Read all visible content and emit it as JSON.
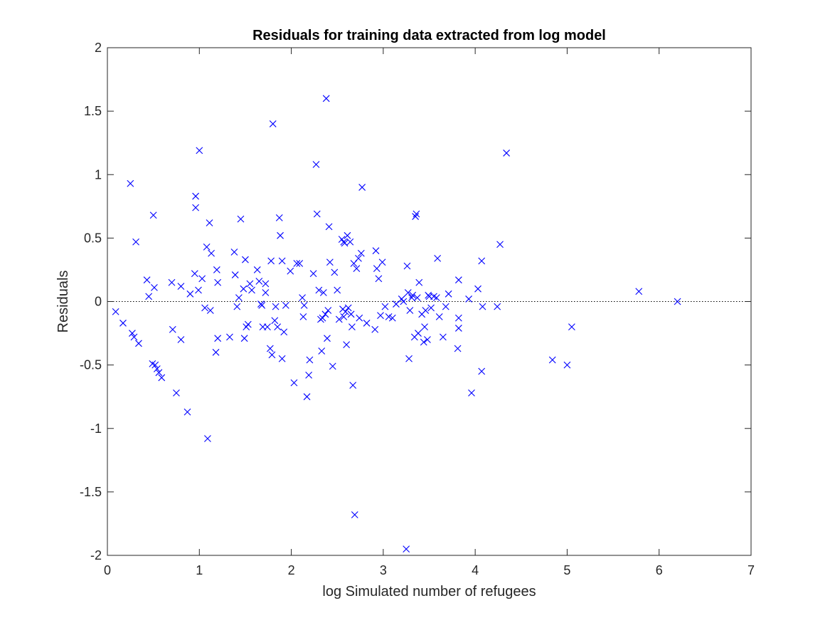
{
  "chart_data": {
    "type": "scatter",
    "title": "Residuals for training data extracted from log model",
    "xlabel": "log Simulated number of refugees",
    "ylabel": "Residuals",
    "xlim": [
      0,
      7
    ],
    "ylim": [
      -2,
      2
    ],
    "xticks": [
      "0",
      "1",
      "2",
      "3",
      "4",
      "5",
      "6",
      "7"
    ],
    "yticks": [
      "-2",
      "-1.5",
      "-1",
      "-0.5",
      "0",
      "0.5",
      "1",
      "1.5",
      "2"
    ],
    "reference_line": {
      "y": 0,
      "style": "dotted"
    },
    "marker": "x",
    "marker_color": "#0000ff",
    "grid": false,
    "points": [
      [
        0.09,
        -0.08
      ],
      [
        0.17,
        -0.17
      ],
      [
        0.25,
        0.93
      ],
      [
        0.27,
        -0.25
      ],
      [
        0.29,
        -0.28
      ],
      [
        0.31,
        0.47
      ],
      [
        0.34,
        -0.33
      ],
      [
        0.43,
        0.17
      ],
      [
        0.45,
        0.04
      ],
      [
        0.49,
        -0.49
      ],
      [
        0.5,
        0.68
      ],
      [
        0.51,
        0.11
      ],
      [
        0.52,
        -0.5
      ],
      [
        0.54,
        -0.53
      ],
      [
        0.56,
        -0.56
      ],
      [
        0.59,
        -0.6
      ],
      [
        0.7,
        0.15
      ],
      [
        0.71,
        -0.22
      ],
      [
        0.75,
        -0.72
      ],
      [
        0.8,
        -0.3
      ],
      [
        0.8,
        0.12
      ],
      [
        0.87,
        -0.87
      ],
      [
        0.9,
        0.06
      ],
      [
        0.95,
        0.22
      ],
      [
        0.96,
        0.74
      ],
      [
        0.96,
        0.83
      ],
      [
        0.99,
        0.09
      ],
      [
        1.0,
        1.19
      ],
      [
        1.03,
        0.18
      ],
      [
        1.06,
        -0.05
      ],
      [
        1.08,
        0.43
      ],
      [
        1.09,
        -1.08
      ],
      [
        1.11,
        0.62
      ],
      [
        1.12,
        -0.07
      ],
      [
        1.13,
        0.38
      ],
      [
        1.18,
        -0.4
      ],
      [
        1.19,
        0.25
      ],
      [
        1.2,
        -0.29
      ],
      [
        1.2,
        0.15
      ],
      [
        1.33,
        -0.28
      ],
      [
        1.38,
        0.39
      ],
      [
        1.39,
        0.21
      ],
      [
        1.41,
        -0.04
      ],
      [
        1.43,
        0.03
      ],
      [
        1.45,
        0.65
      ],
      [
        1.48,
        0.1
      ],
      [
        1.49,
        -0.29
      ],
      [
        1.5,
        0.33
      ],
      [
        1.51,
        -0.2
      ],
      [
        1.53,
        -0.18
      ],
      [
        1.55,
        0.14
      ],
      [
        1.57,
        0.09
      ],
      [
        1.63,
        0.25
      ],
      [
        1.65,
        0.16
      ],
      [
        1.67,
        -0.02
      ],
      [
        1.68,
        -0.03
      ],
      [
        1.69,
        -0.2
      ],
      [
        1.72,
        0.14
      ],
      [
        1.72,
        0.07
      ],
      [
        1.74,
        -0.2
      ],
      [
        1.77,
        -0.37
      ],
      [
        1.78,
        0.32
      ],
      [
        1.79,
        -0.42
      ],
      [
        1.8,
        1.4
      ],
      [
        1.82,
        -0.15
      ],
      [
        1.83,
        -0.04
      ],
      [
        1.85,
        -0.2
      ],
      [
        1.87,
        0.66
      ],
      [
        1.88,
        0.52
      ],
      [
        1.9,
        0.32
      ],
      [
        1.9,
        -0.45
      ],
      [
        1.92,
        -0.24
      ],
      [
        1.94,
        -0.03
      ],
      [
        1.99,
        0.24
      ],
      [
        2.03,
        -0.64
      ],
      [
        2.06,
        0.3
      ],
      [
        2.09,
        0.3
      ],
      [
        2.12,
        0.03
      ],
      [
        2.13,
        -0.12
      ],
      [
        2.14,
        -0.03
      ],
      [
        2.17,
        -0.75
      ],
      [
        2.19,
        -0.58
      ],
      [
        2.2,
        -0.46
      ],
      [
        2.24,
        0.22
      ],
      [
        2.27,
        1.08
      ],
      [
        2.28,
        0.69
      ],
      [
        2.3,
        0.09
      ],
      [
        2.32,
        -0.14
      ],
      [
        2.33,
        -0.39
      ],
      [
        2.34,
        -0.13
      ],
      [
        2.35,
        0.07
      ],
      [
        2.37,
        -0.1
      ],
      [
        2.38,
        1.6
      ],
      [
        2.39,
        -0.29
      ],
      [
        2.4,
        -0.07
      ],
      [
        2.41,
        0.59
      ],
      [
        2.42,
        0.31
      ],
      [
        2.45,
        -0.51
      ],
      [
        2.47,
        0.23
      ],
      [
        2.5,
        0.09
      ],
      [
        2.52,
        -0.14
      ],
      [
        2.55,
        0.49
      ],
      [
        2.56,
        -0.06
      ],
      [
        2.57,
        0.47
      ],
      [
        2.57,
        -0.12
      ],
      [
        2.58,
        0.46
      ],
      [
        2.59,
        -0.08
      ],
      [
        2.6,
        -0.34
      ],
      [
        2.61,
        0.52
      ],
      [
        2.62,
        -0.05
      ],
      [
        2.64,
        0.47
      ],
      [
        2.65,
        -0.1
      ],
      [
        2.66,
        -0.2
      ],
      [
        2.67,
        -0.66
      ],
      [
        2.68,
        0.3
      ],
      [
        2.69,
        -1.68
      ],
      [
        2.71,
        0.26
      ],
      [
        2.73,
        0.34
      ],
      [
        2.74,
        -0.13
      ],
      [
        2.76,
        0.38
      ],
      [
        2.77,
        0.9
      ],
      [
        2.82,
        -0.17
      ],
      [
        2.91,
        -0.22
      ],
      [
        2.92,
        0.4
      ],
      [
        2.93,
        0.26
      ],
      [
        2.95,
        0.18
      ],
      [
        2.97,
        -0.11
      ],
      [
        2.99,
        0.31
      ],
      [
        3.02,
        -0.04
      ],
      [
        3.06,
        -0.12
      ],
      [
        3.1,
        -0.13
      ],
      [
        3.14,
        -0.02
      ],
      [
        3.2,
        0.02
      ],
      [
        3.22,
        0.0
      ],
      [
        3.25,
        -1.95
      ],
      [
        3.26,
        0.28
      ],
      [
        3.27,
        0.07
      ],
      [
        3.28,
        -0.45
      ],
      [
        3.29,
        -0.07
      ],
      [
        3.31,
        0.03
      ],
      [
        3.32,
        0.05
      ],
      [
        3.34,
        -0.28
      ],
      [
        3.35,
        0.67
      ],
      [
        3.36,
        0.69
      ],
      [
        3.37,
        0.03
      ],
      [
        3.38,
        -0.25
      ],
      [
        3.39,
        0.15
      ],
      [
        3.42,
        -0.1
      ],
      [
        3.44,
        -0.32
      ],
      [
        3.45,
        -0.2
      ],
      [
        3.46,
        -0.07
      ],
      [
        3.48,
        -0.3
      ],
      [
        3.49,
        0.05
      ],
      [
        3.5,
        0.04
      ],
      [
        3.52,
        -0.05
      ],
      [
        3.55,
        0.04
      ],
      [
        3.58,
        0.03
      ],
      [
        3.59,
        0.34
      ],
      [
        3.61,
        -0.12
      ],
      [
        3.65,
        -0.28
      ],
      [
        3.68,
        -0.04
      ],
      [
        3.71,
        0.06
      ],
      [
        3.81,
        -0.37
      ],
      [
        3.82,
        -0.21
      ],
      [
        3.82,
        -0.13
      ],
      [
        3.82,
        0.17
      ],
      [
        3.93,
        0.02
      ],
      [
        3.96,
        -0.72
      ],
      [
        4.03,
        0.1
      ],
      [
        4.07,
        0.32
      ],
      [
        4.07,
        -0.55
      ],
      [
        4.08,
        -0.04
      ],
      [
        4.24,
        -0.04
      ],
      [
        4.27,
        0.45
      ],
      [
        4.34,
        1.17
      ],
      [
        4.84,
        -0.46
      ],
      [
        5.0,
        -0.5
      ],
      [
        5.05,
        -0.2
      ],
      [
        5.78,
        0.08
      ],
      [
        6.2,
        0.0
      ]
    ]
  }
}
